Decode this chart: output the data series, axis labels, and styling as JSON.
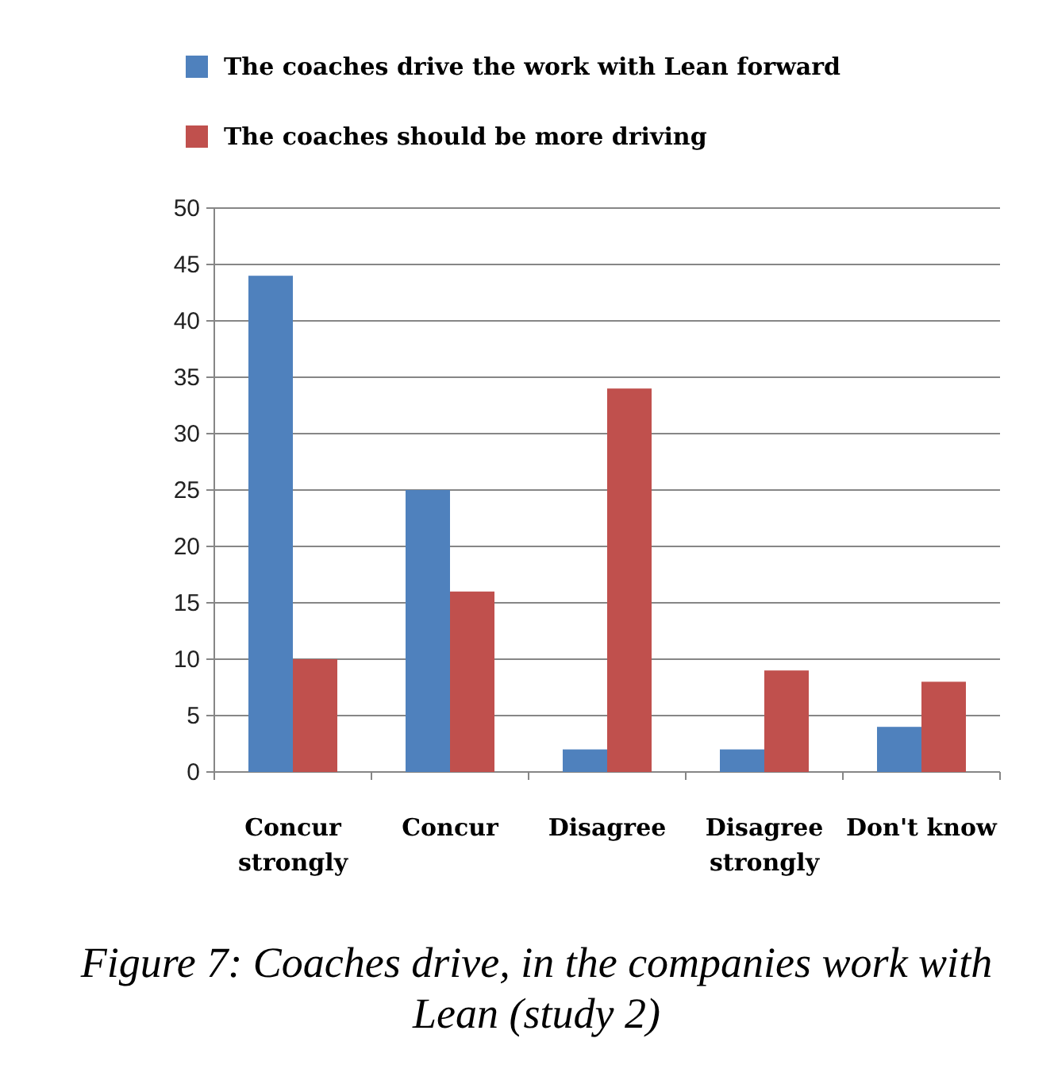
{
  "chart_data": {
    "type": "bar",
    "categories": [
      "Concur strongly",
      "Concur",
      "Disagree",
      "Disagree strongly",
      "Don't know"
    ],
    "series": [
      {
        "name": "The coaches drive the work with Lean forward",
        "color": "#4f81bd",
        "values": [
          44,
          25,
          2,
          2,
          4
        ]
      },
      {
        "name": "The coaches should be more driving",
        "color": "#c0504d",
        "values": [
          10,
          16,
          34,
          9,
          8
        ]
      }
    ],
    "ylim": [
      0,
      50
    ],
    "yticks": [
      0,
      5,
      10,
      15,
      20,
      25,
      30,
      35,
      40,
      45,
      50
    ],
    "grid": "y",
    "legend": "top left",
    "annotations": [
      "Figure 7: Coaches drive, in the companies work with Lean (study 2)"
    ]
  }
}
